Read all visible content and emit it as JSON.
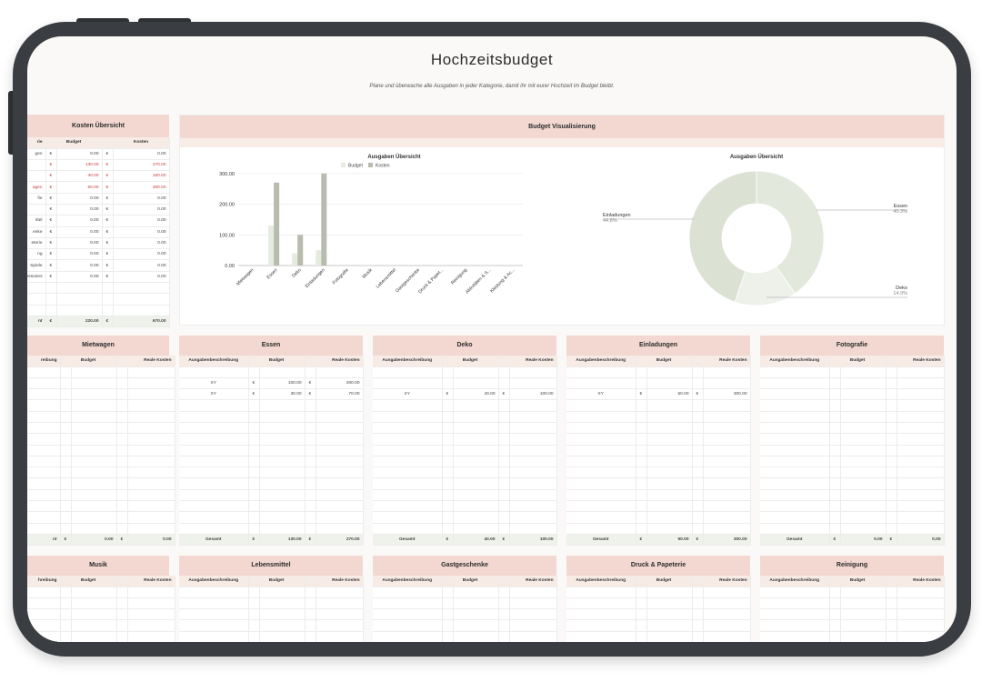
{
  "page": {
    "title": "Hochzeitsbudget",
    "subtitle": "Plane und überwache alle Ausgaben in jeder Kategorie, damit ihr mit eurer Hochzeit im Budget bleibt."
  },
  "cost_overview": {
    "title": "Kosten Übersicht",
    "headers": [
      "rie",
      "Budget",
      "",
      "Kosten"
    ],
    "currency": "€",
    "rows": [
      {
        "label": "gen",
        "budget": "0.00",
        "cost": "0.00",
        "over": false
      },
      {
        "label": "",
        "budget": "130.00",
        "cost": "270.00",
        "over": true
      },
      {
        "label": "",
        "budget": "40.00",
        "cost": "100.00",
        "over": true
      },
      {
        "label": "agen",
        "budget": "50.00",
        "cost": "300.00",
        "over": true
      },
      {
        "label": "fie",
        "budget": "0.00",
        "cost": "0.00",
        "over": false
      },
      {
        "label": "",
        "budget": "0.00",
        "cost": "0.00",
        "over": false
      },
      {
        "label": "ittel",
        "budget": "0.00",
        "cost": "0.00",
        "over": false
      },
      {
        "label": "enke",
        "budget": "0.00",
        "cost": "0.00",
        "over": false
      },
      {
        "label": "eterie",
        "budget": "0.00",
        "cost": "0.00",
        "over": false
      },
      {
        "label": "ng",
        "budget": "0.00",
        "cost": "0.00",
        "over": false
      },
      {
        "label": "Spiele",
        "budget": "0.00",
        "cost": "0.00",
        "over": false
      },
      {
        "label": "ccessoires",
        "budget": "0.00",
        "cost": "0.00",
        "over": false
      }
    ],
    "total": {
      "label": "nt",
      "budget": "220.00",
      "cost": "670.00"
    }
  },
  "visualization": {
    "title": "Budget Visualisierung"
  },
  "chart_data": [
    {
      "type": "bar",
      "title": "Ausgaben Übersicht",
      "legend_position": "top",
      "categories": [
        "Mietwagen",
        "Essen",
        "Deko",
        "Einladungen",
        "Fotografie",
        "Musik",
        "Lebensmittel",
        "Gastgeschenke",
        "Druck & Papet...",
        "Reinigung",
        "Aktivitäten & S...",
        "Kleidung & Ac..."
      ],
      "series": [
        {
          "name": "Budget",
          "color": "#e6ebdf",
          "values": [
            0,
            130,
            40,
            50,
            0,
            0,
            0,
            0,
            0,
            0,
            0,
            0
          ]
        },
        {
          "name": "Kosten",
          "color": "#b7bcae",
          "values": [
            0,
            270,
            100,
            300,
            0,
            0,
            0,
            0,
            0,
            0,
            0,
            0
          ]
        }
      ],
      "yticks": [
        "0.00",
        "100.00",
        "200.00",
        "300.00"
      ],
      "ylim": [
        0,
        320
      ],
      "grid": true
    },
    {
      "type": "pie",
      "title": "Ausgaben Übersicht",
      "labels": [
        "Essen",
        "Einladungen",
        "Deko"
      ],
      "values": [
        40.3,
        44.8,
        14.9
      ],
      "percent_labels": [
        "40.3%",
        "44.8%",
        "14.9%"
      ],
      "colors": [
        "#e2e8dc",
        "#dbe2d4",
        "#eef1ea"
      ]
    }
  ],
  "categories": [
    {
      "key": "mietwagen",
      "title": "Mietwagen",
      "col_desc": "reibung",
      "col_budget": "Budget",
      "col_real": "Reale Kosten",
      "rows": [],
      "total": {
        "label": "nt",
        "budget": "0.00",
        "real": "0.00"
      }
    },
    {
      "key": "essen",
      "title": "Essen",
      "col_desc": "Ausgabenbeschreibung",
      "col_budget": "Budget",
      "col_real": "Reale Kosten",
      "rows": [
        {
          "desc": "",
          "budget": "",
          "real": ""
        },
        {
          "desc": "XY",
          "budget": "100.00",
          "real": "200.00"
        },
        {
          "desc": "XY",
          "budget": "30.00",
          "real": "70.00"
        }
      ],
      "total": {
        "label": "Gesamt",
        "budget": "130.00",
        "real": "270.00"
      }
    },
    {
      "key": "deko",
      "title": "Deko",
      "col_desc": "Ausgabenbeschreibung",
      "col_budget": "Budget",
      "col_real": "Reale Kosten",
      "rows": [
        {
          "desc": "",
          "budget": "",
          "real": ""
        },
        {
          "desc": "",
          "budget": "",
          "real": ""
        },
        {
          "desc": "XY",
          "budget": "40.00",
          "real": "100.00"
        }
      ],
      "total": {
        "label": "Gesamt",
        "budget": "40.00",
        "real": "100.00"
      }
    },
    {
      "key": "einladungen",
      "title": "Einladungen",
      "col_desc": "Ausgabenbeschreibung",
      "col_budget": "Budget",
      "col_real": "Reale Kosten",
      "rows": [
        {
          "desc": "",
          "budget": "",
          "real": ""
        },
        {
          "desc": "",
          "budget": "",
          "real": ""
        },
        {
          "desc": "XY",
          "budget": "50.00",
          "real": "300.00"
        }
      ],
      "total": {
        "label": "Gesamt",
        "budget": "50.00",
        "real": "300.00"
      }
    },
    {
      "key": "fotografie",
      "title": "Fotografie",
      "col_desc": "Ausgabenbeschreibung",
      "col_budget": "Budget",
      "col_real": "Reale Kosten",
      "rows": [],
      "total": {
        "label": "Gesamt",
        "budget": "0.00",
        "real": "0.00"
      }
    }
  ],
  "categories_row2": [
    {
      "key": "musik",
      "title": "Musik",
      "col_desc": "hreibung",
      "col_budget": "Budget",
      "col_real": "Reale Kosten"
    },
    {
      "key": "lebensmittel",
      "title": "Lebensmittel",
      "col_desc": "Ausgabenbeschreibung",
      "col_budget": "Budget",
      "col_real": "Reale Kosten"
    },
    {
      "key": "gastgeschenke",
      "title": "Gastgeschenke",
      "col_desc": "Ausgabenbeschreibung",
      "col_budget": "Budget",
      "col_real": "Reale Kosten"
    },
    {
      "key": "druck",
      "title": "Druck & Papeterie",
      "col_desc": "Ausgabenbeschreibung",
      "col_budget": "Budget",
      "col_real": "Reale Kosten"
    },
    {
      "key": "reinigung",
      "title": "Reinigung",
      "col_desc": "Ausgabenbeschreibung",
      "col_budget": "Budget",
      "col_real": "Reale Kosten"
    }
  ]
}
